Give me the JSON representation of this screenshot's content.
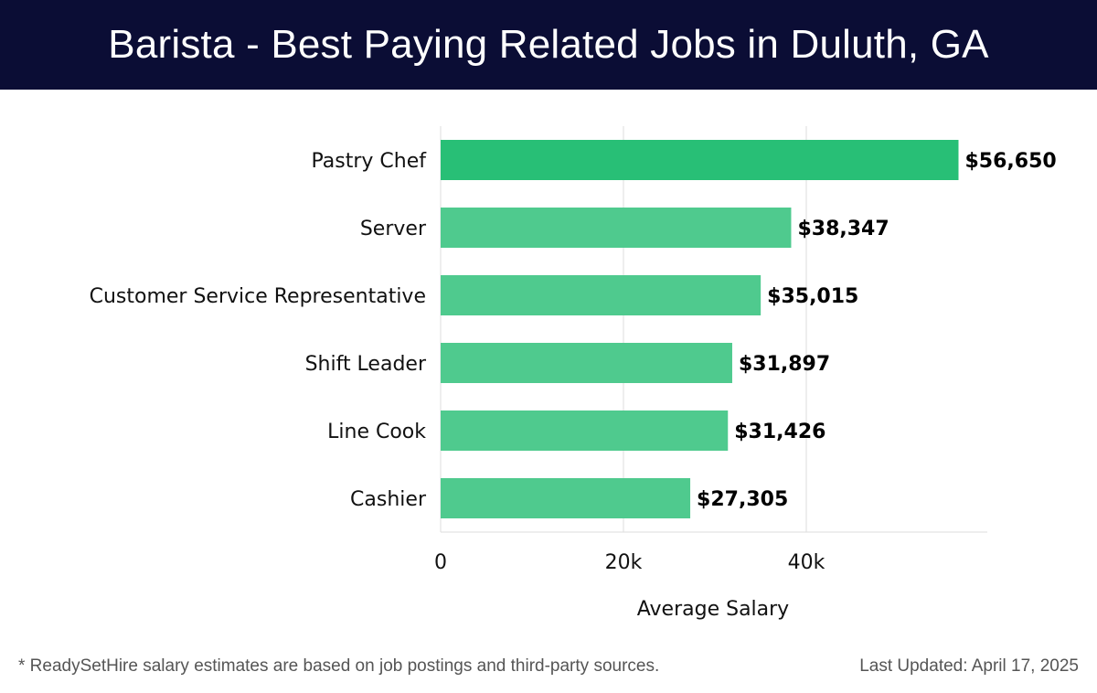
{
  "header": {
    "title": "Barista - Best Paying Related Jobs in Duluth, GA"
  },
  "colors": {
    "header_bg": "#0b0d35",
    "bar_top": "#28bf76",
    "bar_other": "#4fca8e",
    "grid": "#dddddd",
    "text": "#111111"
  },
  "chart_data": {
    "type": "bar",
    "orientation": "horizontal",
    "categories": [
      "Pastry Chef",
      "Server",
      "Customer Service Representative",
      "Shift Leader",
      "Line Cook",
      "Cashier"
    ],
    "values": [
      56650,
      38347,
      35015,
      31897,
      31426,
      27305
    ],
    "value_labels": [
      "$56,650",
      "$38,347",
      "$35,015",
      "$31,897",
      "$31,426",
      "$27,305"
    ],
    "xlabel": "Average Salary",
    "ylabel": "",
    "xlim": [
      0,
      60000
    ],
    "xticks": [
      0,
      20000,
      40000
    ],
    "xtick_labels": [
      "0",
      "20k",
      "40k"
    ],
    "grid": "vertical"
  },
  "footer": {
    "note": "* ReadySetHire salary estimates are based on job postings and third-party sources.",
    "updated": "Last Updated: April 17, 2025"
  }
}
